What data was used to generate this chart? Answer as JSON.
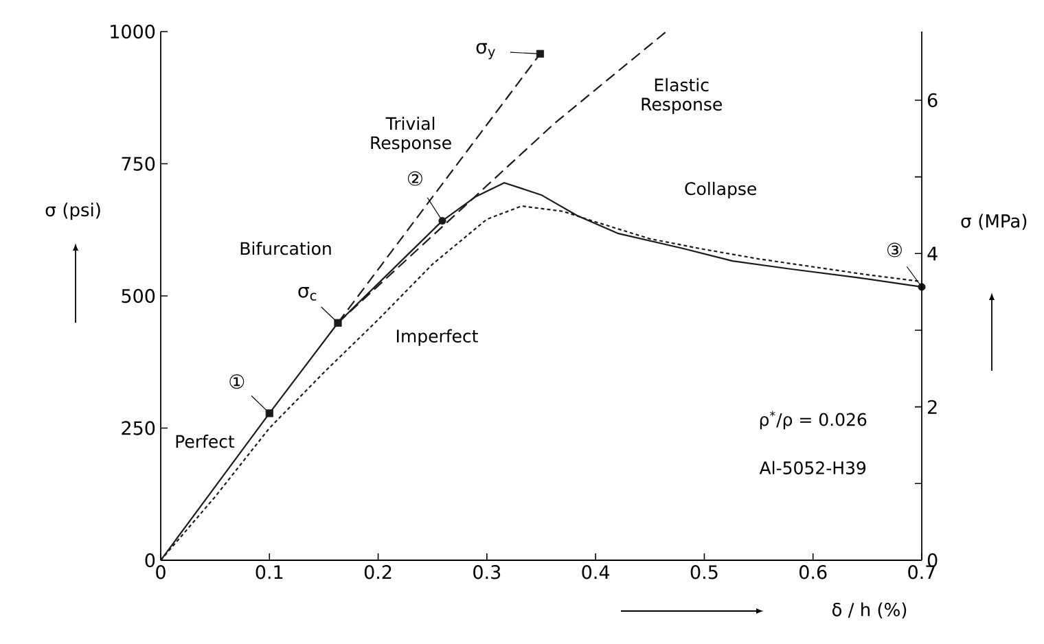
{
  "chart_data": {
    "type": "line",
    "xlabel": "δ / h (%)",
    "ylabel": "σ (psi)",
    "y2label": "σ (MPa)",
    "xlim": [
      0,
      0.7
    ],
    "xticks": [
      0,
      0.1,
      0.2,
      0.3,
      0.4,
      0.5,
      0.6,
      0.7
    ],
    "ylim": [
      0,
      1000
    ],
    "yticks": [
      0,
      250,
      500,
      750,
      1000
    ],
    "y2lim": [
      0,
      6.895
    ],
    "y2ticks": [
      0,
      {
        "value": 1,
        "label": null
      },
      2,
      {
        "value": 3,
        "label": null
      },
      4,
      {
        "value": 5,
        "label": null
      },
      6
    ],
    "series": [
      {
        "name": "Perfect",
        "color": "#1a1a1a",
        "line_style": "solid",
        "marker": "none",
        "x": [
          0,
          0.1,
          0.163,
          0.259,
          0.29,
          0.316,
          0.35,
          0.383,
          0.421,
          0.48,
          0.526,
          0.579,
          0.64,
          0.7
        ],
        "values": [
          0,
          278,
          449,
          642,
          688,
          714,
          691,
          652,
          618,
          590,
          566,
          551,
          535,
          517
        ]
      },
      {
        "name": "Imperfect",
        "color": "#1a1a1a",
        "line_style": "dotted",
        "marker": "none",
        "x": [
          0,
          0.05,
          0.1,
          0.15,
          0.2,
          0.25,
          0.3,
          0.332,
          0.37,
          0.4,
          0.45,
          0.5,
          0.55,
          0.6,
          0.65,
          0.7
        ],
        "values": [
          0,
          120,
          250,
          355,
          455,
          560,
          645,
          670,
          660,
          640,
          608,
          588,
          570,
          555,
          540,
          527
        ]
      },
      {
        "name": "Trivial Response",
        "color": "#1a1a1a",
        "line_style": "dashed",
        "marker": "none",
        "x": [
          0.163,
          0.349
        ],
        "values": [
          449,
          958
        ]
      },
      {
        "name": "Elastic Response",
        "color": "#1a1a1a",
        "line_style": "dashed",
        "marker": "none",
        "x": [
          0.163,
          0.362,
          0.465
        ],
        "values": [
          449,
          826,
          1000
        ]
      },
      {
        "type": "scatter",
        "color": "#1a1a1a",
        "marker": "square",
        "x": [
          0.1,
          0.163,
          0.349
        ],
        "values": [
          278,
          449,
          958
        ]
      },
      {
        "type": "scatter",
        "color": "#1a1a1a",
        "marker": "circle",
        "x": [
          0.259,
          0.7
        ],
        "values": [
          642,
          517
        ]
      }
    ],
    "annotations": [
      {
        "text": "①",
        "x": 0.1,
        "y": 278
      },
      {
        "text": "②",
        "x": 0.259,
        "y": 642
      },
      {
        "text": "③",
        "x": 0.7,
        "y": 517
      },
      {
        "text": "σ$_{c}$",
        "x": 0.163,
        "y": 449
      },
      {
        "text": "σ$_{y}$",
        "x": 0.349,
        "y": 958
      },
      "Bifurcation",
      "Collapse",
      "ρ$^{*}$/ρ = 0.026",
      "Al-5052-H39"
    ]
  }
}
